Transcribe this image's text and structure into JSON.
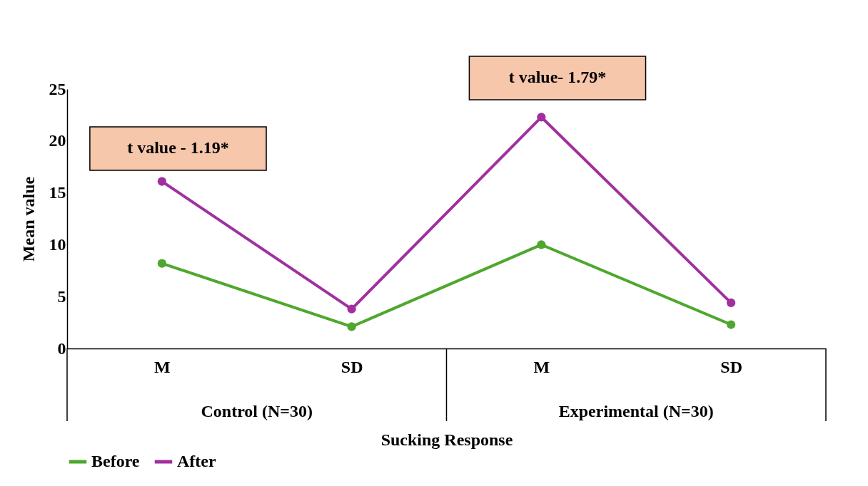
{
  "chart_data": {
    "type": "line",
    "xlabel": "Sucking Response",
    "ylabel": "Mean value",
    "categories": [
      "M",
      "SD",
      "M",
      "SD"
    ],
    "series": [
      {
        "name": "Before",
        "color": "#4ea72e",
        "values": [
          8.2,
          2.1,
          10.0,
          2.3
        ]
      },
      {
        "name": "After",
        "color": "#a0309f",
        "values": [
          16.1,
          3.8,
          22.3,
          4.4
        ]
      }
    ],
    "ylim": [
      0,
      25
    ],
    "yticks": [
      0,
      5,
      10,
      15,
      20,
      25
    ],
    "grid": false,
    "legend": "bottom",
    "marker": "circle",
    "line_style": "solid",
    "annotations": [
      "t value - 1.19*",
      "t value- 1.79*",
      "Control (N=30)",
      "Experimental (N=30)"
    ]
  }
}
